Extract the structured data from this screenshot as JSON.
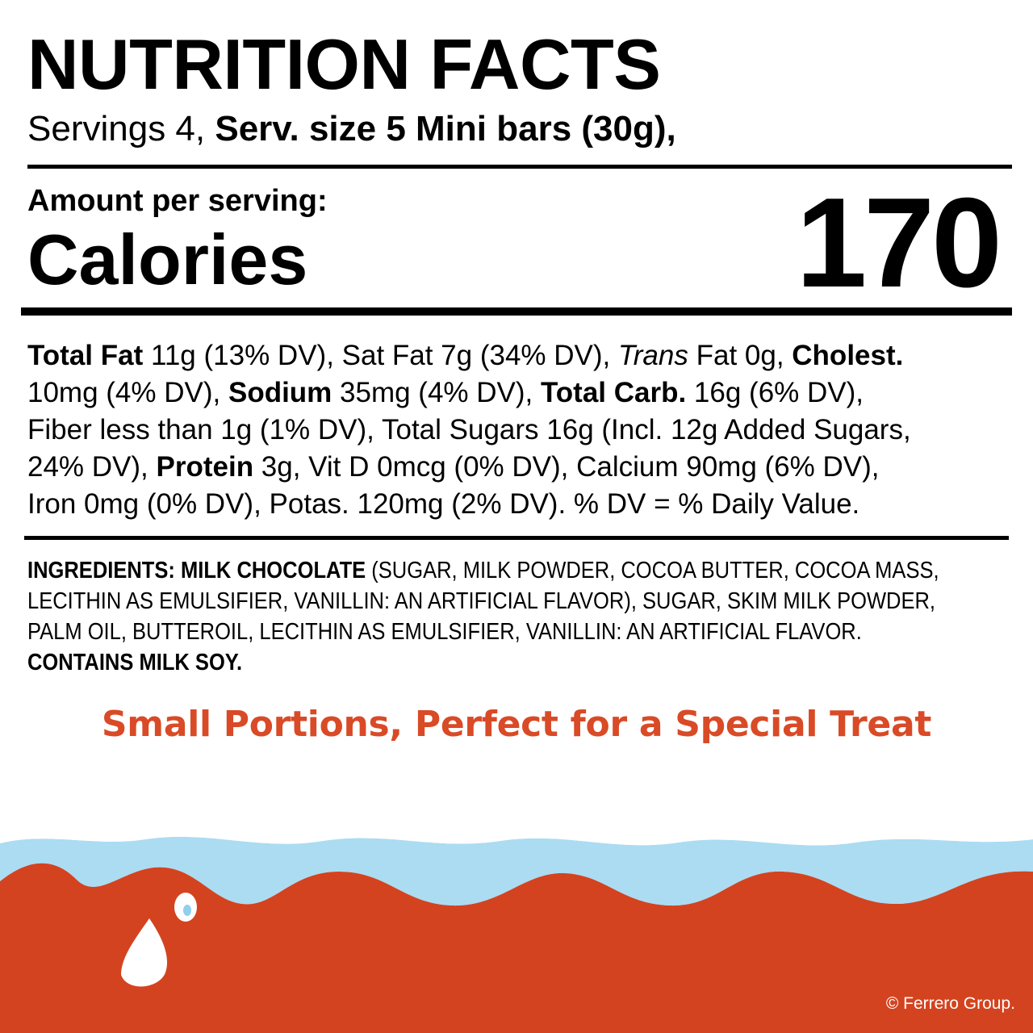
{
  "title": "NUTRITION FACTS",
  "servings": {
    "count_text": "Servings 4, ",
    "size_text": "Serv. size 5 Mini bars (30g),"
  },
  "amount_label": "Amount per serving:",
  "calories": {
    "label": "Calories",
    "value": "170"
  },
  "nutrients": [
    [
      {
        "t": "Total Fat",
        "s": "b"
      },
      {
        "t": " 11g (13% DV), Sat Fat 7g (34% DV), "
      },
      {
        "t": "Trans",
        "s": "i"
      },
      {
        "t": " Fat 0g, "
      },
      {
        "t": "Cholest.",
        "s": "b"
      }
    ],
    [
      {
        "t": "10mg (4% DV), "
      },
      {
        "t": "Sodium",
        "s": "b"
      },
      {
        "t": " 35mg (4% DV), "
      },
      {
        "t": "Total Carb.",
        "s": "b"
      },
      {
        "t": " 16g (6% DV),"
      }
    ],
    [
      {
        "t": "Fiber less than 1g (1% DV), Total Sugars 16g (Incl. 12g Added Sugars,"
      }
    ],
    [
      {
        "t": "24% DV), "
      },
      {
        "t": "Protein",
        "s": "b"
      },
      {
        "t": " 3g, Vit D 0mcg (0% DV), Calcium 90mg (6% DV),"
      }
    ],
    [
      {
        "t": "Iron 0mg (0% DV), Potas. 120mg (2% DV). % DV = % Daily Value."
      }
    ]
  ],
  "ingredients": [
    [
      {
        "t": "INGREDIENTS: MILK CHOCOLATE",
        "s": "b"
      },
      {
        "t": " (SUGAR, MILK POWDER, COCOA BUTTER, COCOA MASS,"
      }
    ],
    [
      {
        "t": "LECITHIN AS EMULSIFIER, VANILLIN: AN ARTIFICIAL FLAVOR), SUGAR, SKIM MILK POWDER,"
      }
    ],
    [
      {
        "t": "PALM OIL, BUTTEROIL, LECITHIN AS EMULSIFIER, VANILLIN: AN ARTIFICIAL FLAVOR."
      }
    ],
    [
      {
        "t": "CONTAINS MILK SOY.",
        "s": "b"
      }
    ]
  ],
  "tagline": "Small Portions, Perfect for a Special Treat",
  "copyright": "© Ferrero Group.",
  "colors": {
    "accent": "#d94a26",
    "chocolate_red": "#d4431f",
    "milk_blue": "#8fd0ee",
    "text": "#000000",
    "background": "#ffffff"
  },
  "decoration": {
    "wave": "milk-wave-over-red-base",
    "droplet_icon": "milk-droplet-icon"
  }
}
